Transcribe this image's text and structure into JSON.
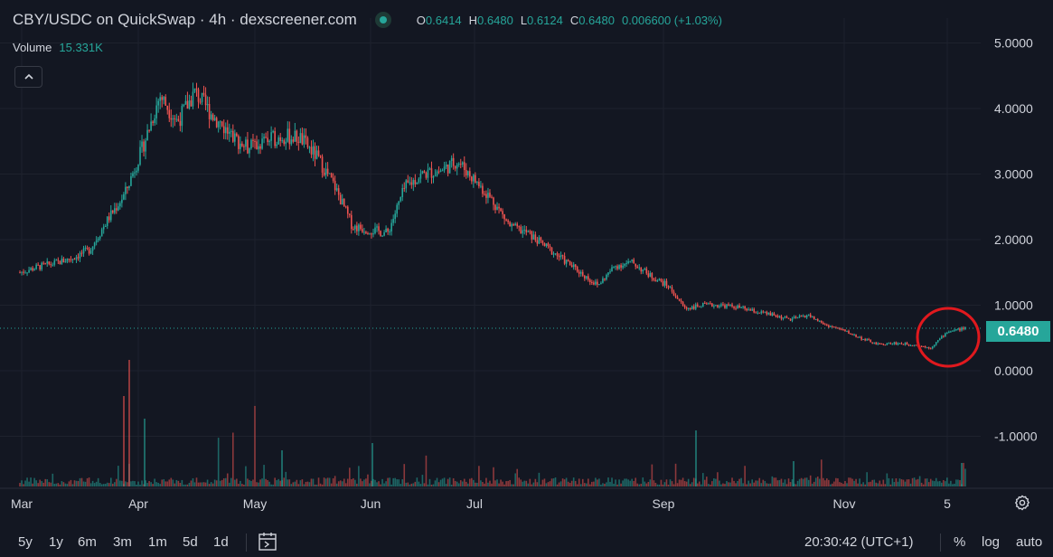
{
  "header": {
    "title": "CBY/USDC on QuickSwap · 4h · dexscreener.com",
    "ohlc": [
      {
        "key": "O",
        "value": "0.6414"
      },
      {
        "key": "H",
        "value": "0.6480"
      },
      {
        "key": "L",
        "value": "0.6124"
      },
      {
        "key": "C",
        "value": "0.6480"
      }
    ],
    "change": "0.006600 (+1.03%)",
    "volume_label": "Volume",
    "volume_value": "15.331K"
  },
  "price_tag": "0.6480",
  "timeframes": [
    "5y",
    "1y",
    "6m",
    "3m",
    "1m",
    "5d",
    "1d"
  ],
  "clock": "20:30:42 (UTC+1)",
  "scale_options": [
    "%",
    "log",
    "auto"
  ],
  "icons": {
    "status": "live-dot-icon",
    "collapse": "chevron-up-icon",
    "calendar": "goto-date-icon",
    "settings": "gear-icon"
  },
  "colors": {
    "up": "#26a69a",
    "down": "#ef5350",
    "background": "#131722",
    "annotation": "#e0191e"
  },
  "chart_data": {
    "type": "candlestick",
    "interval": "4h",
    "y_ticks": [
      "5.0000",
      "4.0000",
      "3.0000",
      "2.0000",
      "1.0000",
      "0.0000",
      "-1.0000"
    ],
    "x_ticks": [
      "Mar",
      "Apr",
      "May",
      "Jun",
      "Jul",
      "Sep",
      "Nov",
      "5"
    ],
    "ylim": [
      -1.65,
      5.35
    ],
    "grid": true,
    "last_price": 0.648,
    "series": [
      {
        "name": "Close",
        "points": [
          [
            "Mar",
            1.5
          ],
          [
            "Mar",
            1.58
          ],
          [
            "Mar",
            1.64
          ],
          [
            "Mar",
            1.72
          ],
          [
            "Mar",
            1.85
          ],
          [
            "Mar",
            2.3
          ],
          [
            "Mar",
            2.7
          ],
          [
            "Mar",
            3.4
          ],
          [
            "Apr",
            4.2
          ],
          [
            "Apr",
            3.8
          ],
          [
            "Apr",
            4.25
          ],
          [
            "Apr",
            3.9
          ],
          [
            "Apr",
            3.6
          ],
          [
            "Apr",
            3.4
          ],
          [
            "Apr",
            3.5
          ],
          [
            "Apr",
            3.58
          ],
          [
            "Apr",
            3.55
          ],
          [
            "May",
            3.25
          ],
          [
            "May",
            2.8
          ],
          [
            "May",
            2.2
          ],
          [
            "May",
            2.15
          ],
          [
            "May",
            2.1
          ],
          [
            "May",
            2.8
          ],
          [
            "May",
            3.0
          ],
          [
            "Jun",
            3.05
          ],
          [
            "Jun",
            3.2
          ],
          [
            "Jun",
            2.9
          ],
          [
            "Jun",
            2.6
          ],
          [
            "Jun",
            2.2
          ],
          [
            "Jun",
            2.1
          ],
          [
            "Jun",
            1.9
          ],
          [
            "Jul",
            1.7
          ],
          [
            "Jul",
            1.5
          ],
          [
            "Jul",
            1.3
          ],
          [
            "Jul",
            1.6
          ],
          [
            "Jul",
            1.65
          ],
          [
            "Jul",
            1.45
          ],
          [
            "Jul",
            1.3
          ],
          [
            "Jul",
            0.95
          ],
          [
            "Jul",
            1.0
          ],
          [
            "Jul",
            1.0
          ],
          [
            "Jul",
            0.97
          ],
          [
            "Sep",
            0.9
          ],
          [
            "Sep",
            0.85
          ],
          [
            "Sep",
            0.78
          ],
          [
            "Sep",
            0.85
          ],
          [
            "Sep",
            0.7
          ],
          [
            "Sep",
            0.62
          ],
          [
            "Sep",
            0.5
          ],
          [
            "Nov",
            0.4
          ],
          [
            "Nov",
            0.42
          ],
          [
            "Nov",
            0.4
          ],
          [
            "Nov",
            0.35
          ],
          [
            "5",
            0.6
          ],
          [
            "5",
            0.648
          ]
        ]
      }
    ],
    "annotations": [
      {
        "type": "circle",
        "label": "",
        "near_price": 0.55
      }
    ]
  }
}
